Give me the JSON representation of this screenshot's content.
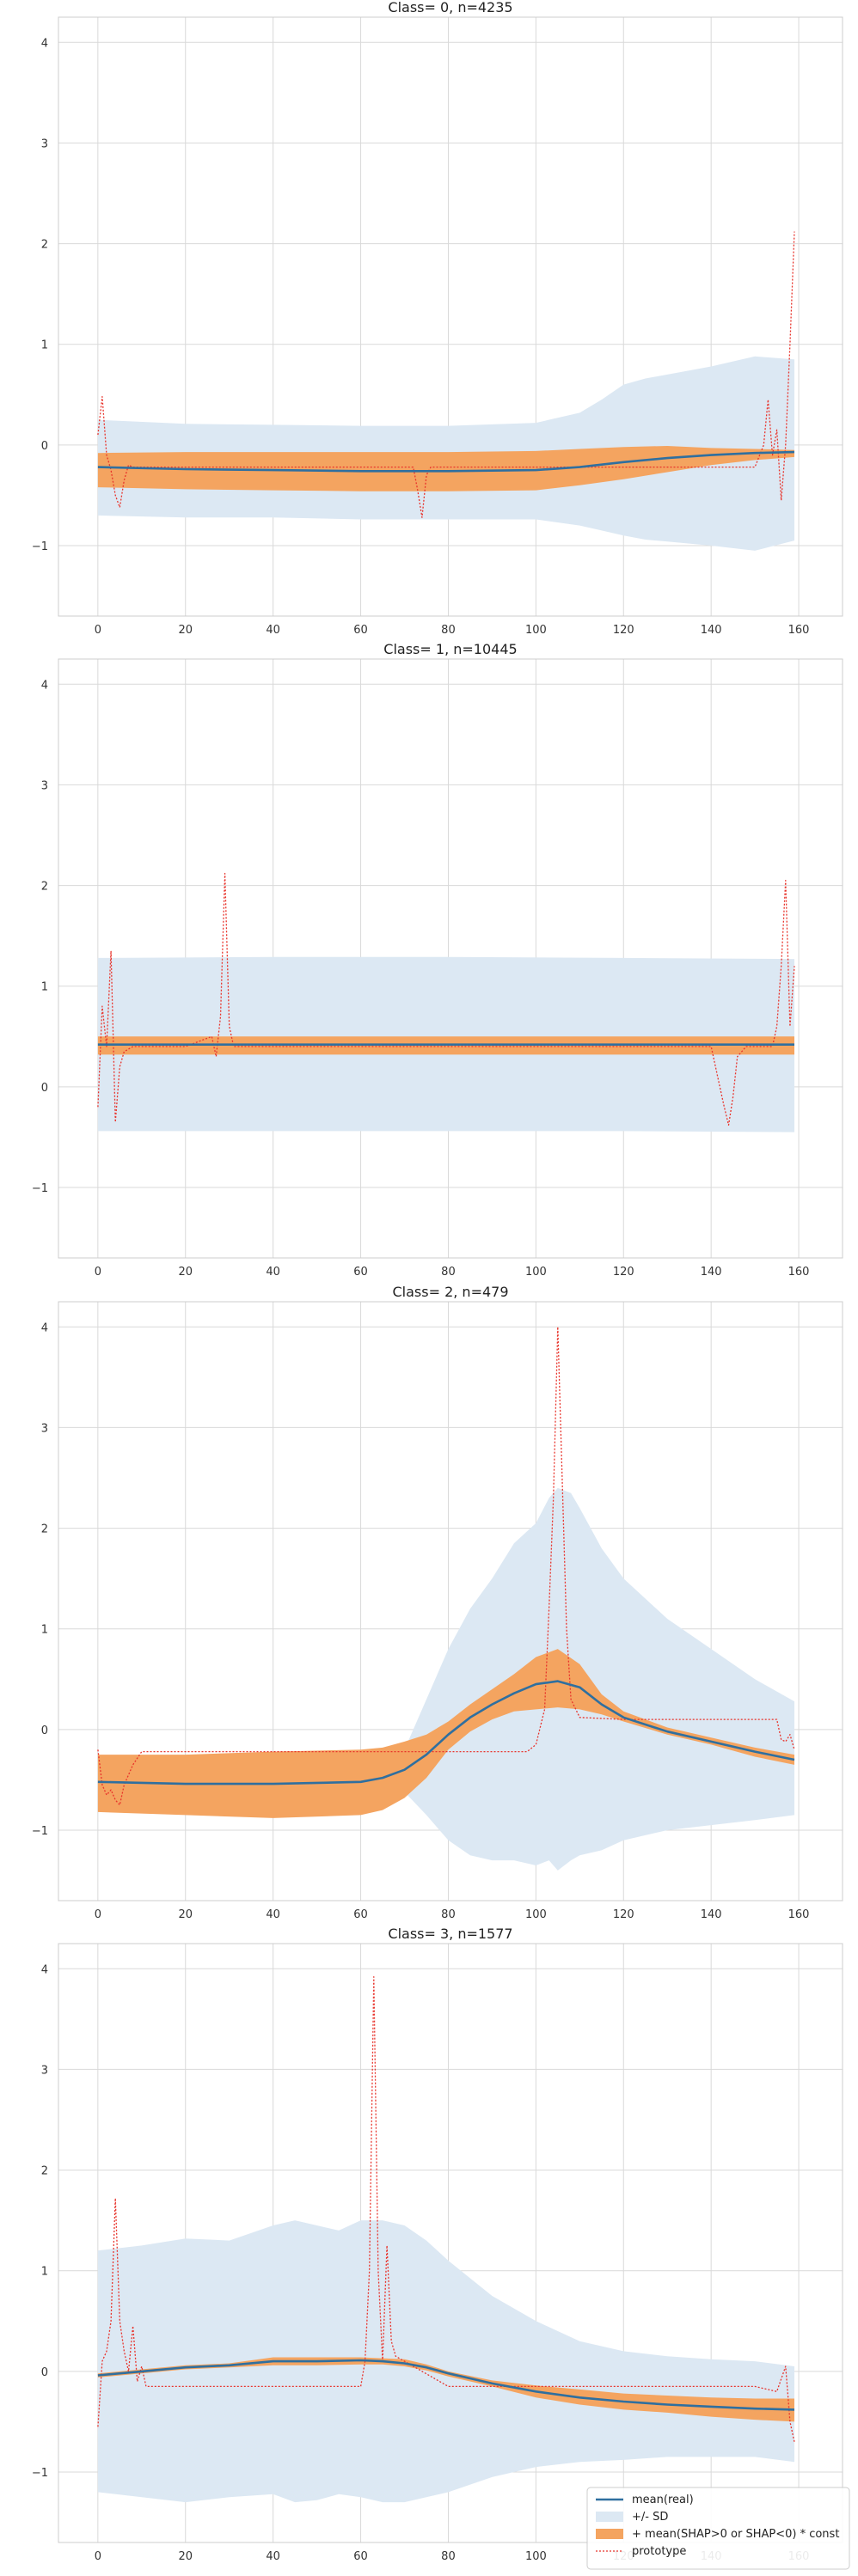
{
  "colors": {
    "mean": "#2f6f9f",
    "sd_band": "#dce8f3",
    "shap_band": "#f4a460",
    "prototype": "#e8332b",
    "grid": "#d9d9d9",
    "axes_bg": "#ffffff"
  },
  "legend": {
    "placement": "lower-right (last panel)",
    "entries": [
      "mean(real)",
      "+/- SD",
      "+ mean(SHAP>0 or SHAP<0) * const",
      "prototype"
    ]
  },
  "chart_data": [
    {
      "type": "line",
      "title": "Class= 0, n=4235",
      "xlim": [
        -9,
        170
      ],
      "ylim": [
        -1.7,
        4.25
      ],
      "xticks": [
        "0",
        "20",
        "40",
        "60",
        "80",
        "100",
        "120",
        "140",
        "160"
      ],
      "yticks": [
        "−1",
        "0",
        "1",
        "2",
        "3",
        "4"
      ],
      "grid": true,
      "mean": {
        "x": [
          0,
          20,
          40,
          60,
          80,
          100,
          110,
          120,
          130,
          140,
          150,
          159
        ],
        "y": [
          -0.22,
          -0.24,
          -0.25,
          -0.26,
          -0.26,
          -0.25,
          -0.22,
          -0.17,
          -0.13,
          -0.1,
          -0.08,
          -0.07
        ]
      },
      "sd_band": {
        "x": [
          0,
          20,
          40,
          60,
          80,
          100,
          110,
          115,
          120,
          125,
          130,
          140,
          150,
          159
        ],
        "upper": [
          0.25,
          0.21,
          0.2,
          0.19,
          0.19,
          0.22,
          0.32,
          0.45,
          0.6,
          0.66,
          0.7,
          0.78,
          0.88,
          0.85
        ],
        "lower": [
          -0.7,
          -0.72,
          -0.72,
          -0.74,
          -0.74,
          -0.74,
          -0.8,
          -0.85,
          -0.9,
          -0.94,
          -0.96,
          -1.0,
          -1.05,
          -0.95
        ]
      },
      "shap_band": {
        "x": [
          0,
          20,
          40,
          60,
          80,
          100,
          110,
          120,
          130,
          140,
          150,
          159
        ],
        "upper": [
          -0.08,
          -0.07,
          -0.07,
          -0.07,
          -0.07,
          -0.06,
          -0.04,
          -0.02,
          -0.01,
          -0.03,
          -0.04,
          -0.05
        ],
        "lower": [
          -0.42,
          -0.44,
          -0.45,
          -0.46,
          -0.46,
          -0.45,
          -0.4,
          -0.34,
          -0.27,
          -0.2,
          -0.15,
          -0.12
        ]
      },
      "prototype": {
        "x": [
          0,
          1,
          2,
          3,
          4,
          5,
          6,
          7,
          8,
          10,
          20,
          40,
          60,
          72,
          73,
          74,
          75,
          76,
          80,
          100,
          120,
          140,
          150,
          152,
          153,
          154,
          155,
          156,
          157,
          158,
          159
        ],
        "y": [
          0.1,
          0.48,
          -0.1,
          -0.25,
          -0.5,
          -0.62,
          -0.35,
          -0.2,
          -0.22,
          -0.22,
          -0.22,
          -0.22,
          -0.22,
          -0.22,
          -0.45,
          -0.72,
          -0.3,
          -0.22,
          -0.22,
          -0.22,
          -0.22,
          -0.22,
          -0.22,
          0.0,
          0.45,
          -0.1,
          0.15,
          -0.55,
          0.0,
          1.0,
          2.12
        ]
      }
    },
    {
      "type": "line",
      "title": "Class= 1, n=10445",
      "xlim": [
        -9,
        170
      ],
      "ylim": [
        -1.7,
        4.25
      ],
      "xticks": [
        "0",
        "20",
        "40",
        "60",
        "80",
        "100",
        "120",
        "140",
        "160"
      ],
      "yticks": [
        "−1",
        "0",
        "1",
        "2",
        "3",
        "4"
      ],
      "grid": true,
      "mean": {
        "x": [
          0,
          40,
          80,
          120,
          159
        ],
        "y": [
          0.42,
          0.42,
          0.42,
          0.42,
          0.42
        ]
      },
      "sd_band": {
        "x": [
          0,
          40,
          80,
          120,
          159
        ],
        "upper": [
          1.28,
          1.29,
          1.29,
          1.28,
          1.27
        ],
        "lower": [
          -0.44,
          -0.44,
          -0.44,
          -0.44,
          -0.45
        ]
      },
      "shap_band": {
        "x": [
          0,
          40,
          80,
          120,
          159
        ],
        "upper": [
          0.5,
          0.5,
          0.5,
          0.5,
          0.5
        ],
        "lower": [
          0.32,
          0.32,
          0.32,
          0.32,
          0.32
        ]
      },
      "prototype": {
        "x": [
          0,
          1,
          2,
          3,
          4,
          5,
          6,
          8,
          10,
          20,
          26,
          27,
          28,
          29,
          30,
          31,
          32,
          40,
          80,
          120,
          140,
          142,
          143,
          144,
          145,
          146,
          148,
          150,
          152,
          154,
          155,
          156,
          157,
          158,
          159
        ],
        "y": [
          -0.2,
          0.8,
          0.4,
          1.35,
          -0.35,
          0.2,
          0.35,
          0.4,
          0.4,
          0.4,
          0.5,
          0.3,
          0.7,
          2.12,
          0.6,
          0.4,
          0.4,
          0.4,
          0.4,
          0.4,
          0.4,
          0.0,
          -0.2,
          -0.38,
          -0.1,
          0.3,
          0.4,
          0.4,
          0.4,
          0.4,
          0.6,
          1.2,
          2.05,
          0.6,
          1.2
        ]
      }
    },
    {
      "type": "line",
      "title": "Class= 2, n=479",
      "xlim": [
        -9,
        170
      ],
      "ylim": [
        -1.7,
        4.25
      ],
      "xticks": [
        "0",
        "20",
        "40",
        "60",
        "80",
        "100",
        "120",
        "140",
        "160"
      ],
      "yticks": [
        "−1",
        "0",
        "1",
        "2",
        "3",
        "4"
      ],
      "grid": true,
      "mean": {
        "x": [
          0,
          20,
          40,
          60,
          65,
          70,
          75,
          80,
          85,
          90,
          95,
          100,
          105,
          110,
          115,
          120,
          130,
          140,
          150,
          159
        ],
        "y": [
          -0.52,
          -0.54,
          -0.54,
          -0.52,
          -0.48,
          -0.4,
          -0.25,
          -0.05,
          0.12,
          0.25,
          0.36,
          0.45,
          0.48,
          0.42,
          0.25,
          0.12,
          -0.02,
          -0.12,
          -0.22,
          -0.3
        ]
      },
      "sd_band": {
        "x": [
          0,
          20,
          40,
          60,
          65,
          70,
          75,
          80,
          85,
          90,
          95,
          100,
          103,
          105,
          108,
          110,
          115,
          120,
          130,
          140,
          150,
          159
        ],
        "upper": [
          -0.6,
          -0.62,
          -0.62,
          -0.55,
          -0.45,
          -0.2,
          0.3,
          0.8,
          1.2,
          1.5,
          1.85,
          2.05,
          2.3,
          2.4,
          2.35,
          2.2,
          1.8,
          1.5,
          1.1,
          0.8,
          0.5,
          0.28
        ],
        "lower": [
          -0.6,
          -0.62,
          -0.62,
          -0.6,
          -0.55,
          -0.62,
          -0.85,
          -1.1,
          -1.25,
          -1.3,
          -1.3,
          -1.35,
          -1.3,
          -1.4,
          -1.3,
          -1.25,
          -1.2,
          -1.1,
          -1.0,
          -0.95,
          -0.9,
          -0.85
        ]
      },
      "shap_band": {
        "x": [
          0,
          20,
          40,
          60,
          65,
          70,
          75,
          80,
          85,
          90,
          95,
          100,
          105,
          110,
          115,
          120,
          130,
          140,
          150,
          159
        ],
        "upper": [
          -0.25,
          -0.25,
          -0.22,
          -0.2,
          -0.18,
          -0.12,
          -0.05,
          0.08,
          0.25,
          0.4,
          0.55,
          0.72,
          0.8,
          0.65,
          0.35,
          0.18,
          0.02,
          -0.08,
          -0.18,
          -0.25
        ],
        "lower": [
          -0.82,
          -0.85,
          -0.88,
          -0.85,
          -0.8,
          -0.68,
          -0.48,
          -0.2,
          -0.02,
          0.1,
          0.18,
          0.2,
          0.22,
          0.2,
          0.15,
          0.08,
          -0.05,
          -0.15,
          -0.27,
          -0.35
        ]
      },
      "prototype": {
        "x": [
          0,
          1,
          2,
          3,
          4,
          5,
          6,
          8,
          10,
          20,
          40,
          60,
          80,
          98,
          100,
          102,
          103,
          104,
          105,
          106,
          107,
          108,
          110,
          120,
          140,
          155,
          156,
          157,
          158,
          159
        ],
        "y": [
          -0.2,
          -0.55,
          -0.65,
          -0.6,
          -0.7,
          -0.75,
          -0.55,
          -0.35,
          -0.22,
          -0.22,
          -0.22,
          -0.22,
          -0.22,
          -0.22,
          -0.15,
          0.2,
          1.2,
          2.3,
          4.0,
          2.5,
          1.0,
          0.3,
          0.12,
          0.1,
          0.1,
          0.1,
          -0.1,
          -0.12,
          -0.05,
          -0.2
        ]
      }
    },
    {
      "type": "line",
      "title": "Class= 3, n=1577",
      "xlim": [
        -9,
        170
      ],
      "ylim": [
        -1.7,
        4.25
      ],
      "xticks": [
        "0",
        "20",
        "40",
        "60",
        "80",
        "100",
        "120",
        "140",
        "160"
      ],
      "yticks": [
        "−1",
        "0",
        "1",
        "2",
        "3",
        "4"
      ],
      "grid": true,
      "legend": [
        "mean(real)",
        "+/- SD",
        "+ mean(SHAP>0 or SHAP<0) * const",
        "prototype"
      ],
      "mean": {
        "x": [
          0,
          10,
          20,
          30,
          40,
          50,
          60,
          65,
          70,
          75,
          80,
          90,
          100,
          110,
          120,
          130,
          140,
          150,
          159
        ],
        "y": [
          -0.04,
          0.0,
          0.04,
          0.06,
          0.1,
          0.1,
          0.11,
          0.1,
          0.08,
          0.04,
          -0.02,
          -0.12,
          -0.2,
          -0.26,
          -0.3,
          -0.33,
          -0.35,
          -0.37,
          -0.38
        ]
      },
      "sd_band": {
        "x": [
          0,
          10,
          20,
          30,
          40,
          45,
          50,
          55,
          60,
          65,
          70,
          75,
          80,
          90,
          100,
          110,
          120,
          130,
          140,
          150,
          159
        ],
        "upper": [
          1.2,
          1.25,
          1.32,
          1.3,
          1.45,
          1.5,
          1.45,
          1.4,
          1.5,
          1.5,
          1.45,
          1.3,
          1.1,
          0.75,
          0.5,
          0.3,
          0.2,
          0.15,
          0.12,
          0.1,
          0.05
        ],
        "lower": [
          -1.2,
          -1.25,
          -1.3,
          -1.25,
          -1.22,
          -1.3,
          -1.28,
          -1.22,
          -1.25,
          -1.3,
          -1.3,
          -1.25,
          -1.2,
          -1.05,
          -0.95,
          -0.9,
          -0.88,
          -0.85,
          -0.85,
          -0.85,
          -0.9
        ]
      },
      "shap_band": {
        "x": [
          0,
          10,
          20,
          30,
          40,
          50,
          60,
          65,
          70,
          75,
          80,
          90,
          100,
          110,
          120,
          130,
          140,
          150,
          159
        ],
        "upper": [
          -0.02,
          0.02,
          0.06,
          0.08,
          0.14,
          0.14,
          0.14,
          0.13,
          0.12,
          0.07,
          0.0,
          -0.09,
          -0.14,
          -0.18,
          -0.22,
          -0.24,
          -0.26,
          -0.27,
          -0.27
        ],
        "lower": [
          -0.06,
          -0.02,
          0.02,
          0.04,
          0.06,
          0.06,
          0.07,
          0.07,
          0.05,
          0.01,
          -0.05,
          -0.15,
          -0.26,
          -0.33,
          -0.38,
          -0.41,
          -0.45,
          -0.48,
          -0.5
        ]
      },
      "prototype": {
        "x": [
          0,
          1,
          2,
          3,
          4,
          5,
          6,
          7,
          8,
          9,
          10,
          11,
          20,
          40,
          60,
          61,
          62,
          63,
          64,
          65,
          66,
          67,
          68,
          70,
          80,
          100,
          140,
          150,
          155,
          157,
          158,
          159
        ],
        "y": [
          -0.55,
          0.1,
          0.2,
          0.5,
          1.72,
          0.5,
          0.2,
          0.0,
          0.45,
          -0.1,
          0.05,
          -0.15,
          -0.15,
          -0.15,
          -0.15,
          0.1,
          1.0,
          3.92,
          1.0,
          0.1,
          1.25,
          0.3,
          0.15,
          0.1,
          -0.15,
          -0.15,
          -0.15,
          -0.15,
          -0.2,
          0.05,
          -0.5,
          -0.7
        ]
      }
    }
  ]
}
